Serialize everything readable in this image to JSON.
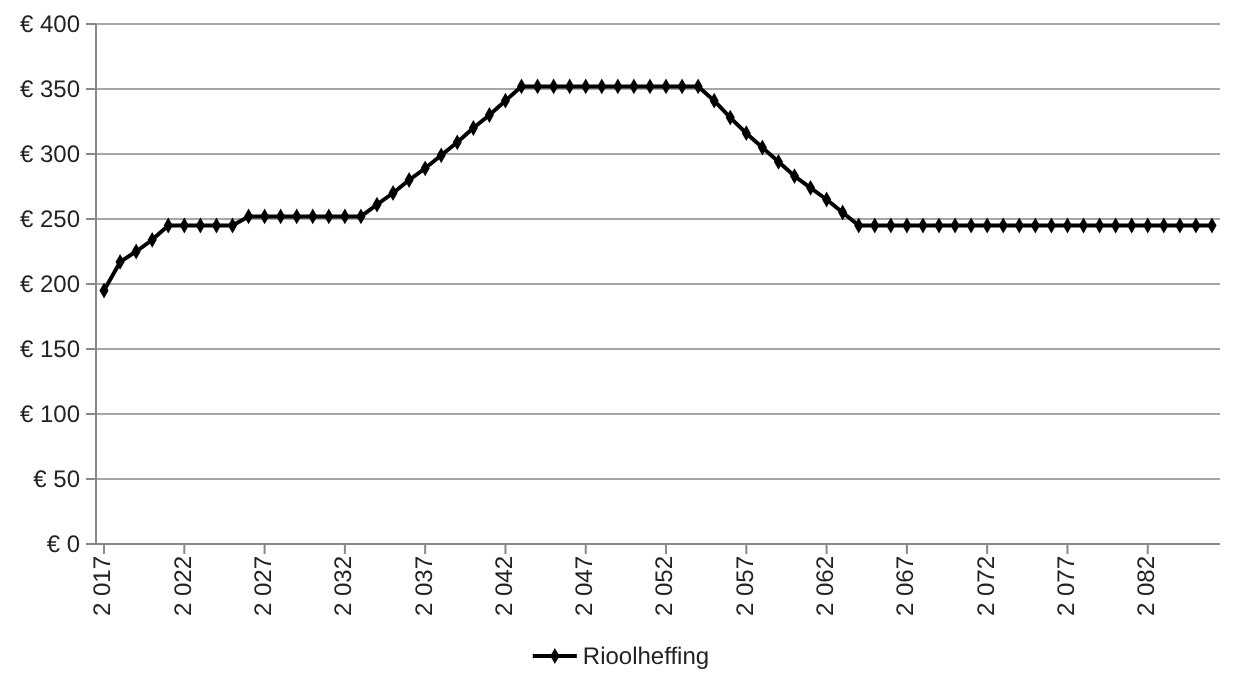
{
  "chart_data": {
    "type": "line",
    "categories": [
      "2 017",
      null,
      null,
      null,
      null,
      "2 022",
      null,
      null,
      null,
      null,
      "2 027",
      null,
      null,
      null,
      null,
      "2 032",
      null,
      null,
      null,
      null,
      "2 037",
      null,
      null,
      null,
      null,
      "2 042",
      null,
      null,
      null,
      null,
      "2 047",
      null,
      null,
      null,
      null,
      "2 052",
      null,
      null,
      null,
      null,
      "2 057",
      null,
      null,
      null,
      null,
      "2 062",
      null,
      null,
      null,
      null,
      "2 067",
      null,
      null,
      null,
      null,
      "2 072",
      null,
      null,
      null,
      null,
      "2 077",
      null,
      null,
      null,
      null,
      "2 082",
      null,
      null,
      null,
      null
    ],
    "series": [
      {
        "name": "Rioolheffing",
        "color": "#000000",
        "values": [
          195,
          217,
          225,
          234,
          245,
          245,
          245,
          245,
          245,
          252,
          252,
          252,
          252,
          252,
          252,
          252,
          252,
          261,
          270,
          280,
          289,
          299,
          309,
          320,
          330,
          341,
          352,
          352,
          352,
          352,
          352,
          352,
          352,
          352,
          352,
          352,
          352,
          352,
          341,
          328,
          316,
          305,
          294,
          283,
          274,
          265,
          255,
          245,
          245,
          245,
          245,
          245,
          245,
          245,
          245,
          245,
          245,
          245,
          245,
          245,
          245,
          245,
          245,
          245,
          245,
          245,
          245,
          245,
          245,
          245
        ]
      }
    ],
    "ylim": [
      0,
      400
    ],
    "yticks": [
      {
        "value": 0,
        "label": "€ 0"
      },
      {
        "value": 50,
        "label": "€ 50"
      },
      {
        "value": 100,
        "label": "€ 100"
      },
      {
        "value": 150,
        "label": "€ 150"
      },
      {
        "value": 200,
        "label": "€ 200"
      },
      {
        "value": 250,
        "label": "€ 250"
      },
      {
        "value": 300,
        "label": "€ 300"
      },
      {
        "value": 350,
        "label": "€ 350"
      },
      {
        "value": 400,
        "label": "€ 400"
      }
    ],
    "grid": "y",
    "legend": "bottom",
    "marker": "diamond",
    "line_style": "solid"
  }
}
